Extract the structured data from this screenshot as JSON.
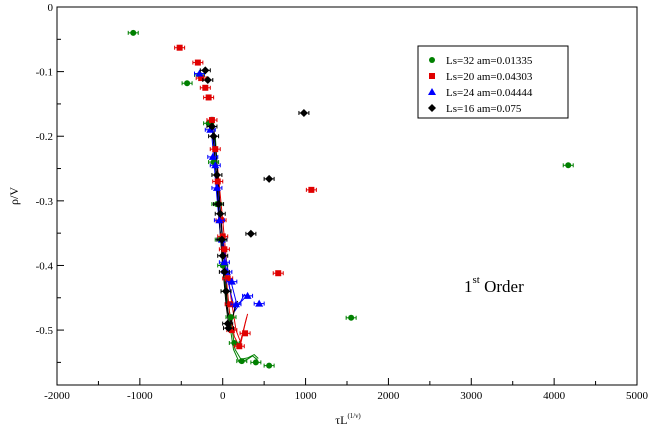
{
  "chart_data": {
    "type": "scatter",
    "xlabel": "τL",
    "xlabel_sup": "(1/ν)",
    "ylabel": "ρ/V",
    "xlim": [
      -2000,
      5000
    ],
    "ylim": [
      -0.585,
      0
    ],
    "xticks": [
      -2000,
      -1000,
      0,
      1000,
      2000,
      3000,
      4000,
      5000
    ],
    "yticks": [
      0,
      -0.1,
      -0.2,
      -0.3,
      -0.4,
      -0.5
    ],
    "grid": false,
    "legend_position": "top-right",
    "annotation": {
      "base": "1",
      "sup": "st",
      "rest": " Order"
    },
    "series": [
      {
        "name": "Ls=32  am=0.01335",
        "color": "#008000",
        "marker": "circle",
        "points": [
          [
            -1080,
            -0.04
          ],
          [
            -430,
            -0.118
          ],
          [
            -280,
            -0.105
          ],
          [
            -170,
            -0.18
          ],
          [
            -110,
            -0.24
          ],
          [
            -70,
            -0.305
          ],
          [
            -30,
            -0.36
          ],
          [
            0,
            -0.4
          ],
          [
            40,
            -0.44
          ],
          [
            100,
            -0.48
          ],
          [
            140,
            -0.52
          ],
          [
            230,
            -0.548
          ],
          [
            400,
            -0.55
          ],
          [
            560,
            -0.555
          ],
          [
            1550,
            -0.481
          ],
          [
            4170,
            -0.245
          ]
        ],
        "curves": [
          [
            [
              -110,
              -0.2
            ],
            [
              -60,
              -0.3
            ],
            [
              0,
              -0.4
            ],
            [
              60,
              -0.47
            ],
            [
              130,
              -0.53
            ],
            [
              200,
              -0.55
            ],
            [
              300,
              -0.545
            ],
            [
              360,
              -0.54
            ],
            [
              420,
              -0.546
            ]
          ],
          [
            [
              -90,
              -0.2
            ],
            [
              -40,
              -0.3
            ],
            [
              20,
              -0.4
            ],
            [
              80,
              -0.47
            ],
            [
              150,
              -0.53
            ],
            [
              220,
              -0.545
            ],
            [
              300,
              -0.543
            ],
            [
              380,
              -0.538
            ],
            [
              430,
              -0.544
            ]
          ]
        ]
      },
      {
        "name": "Ls=20  am=0.04303",
        "color": "#e00000",
        "marker": "square",
        "points": [
          [
            -520,
            -0.063
          ],
          [
            -300,
            -0.086
          ],
          [
            -260,
            -0.11
          ],
          [
            -210,
            -0.125
          ],
          [
            -170,
            -0.14
          ],
          [
            -130,
            -0.175
          ],
          [
            -90,
            -0.22
          ],
          [
            -60,
            -0.27
          ],
          [
            -20,
            -0.33
          ],
          [
            0,
            -0.355
          ],
          [
            20,
            -0.375
          ],
          [
            60,
            -0.42
          ],
          [
            90,
            -0.46
          ],
          [
            110,
            -0.5
          ],
          [
            200,
            -0.525
          ],
          [
            270,
            -0.505
          ],
          [
            670,
            -0.412
          ],
          [
            1070,
            -0.283
          ]
        ],
        "curves": [
          [
            [
              -80,
              -0.25
            ],
            [
              -20,
              -0.33
            ],
            [
              30,
              -0.4
            ],
            [
              80,
              -0.47
            ],
            [
              140,
              -0.51
            ],
            [
              200,
              -0.525
            ],
            [
              250,
              -0.5
            ],
            [
              290,
              -0.48
            ]
          ],
          [
            [
              -60,
              -0.25
            ],
            [
              0,
              -0.33
            ],
            [
              50,
              -0.4
            ],
            [
              100,
              -0.45
            ],
            [
              160,
              -0.5
            ],
            [
              220,
              -0.52
            ],
            [
              270,
              -0.49
            ],
            [
              300,
              -0.475
            ]
          ]
        ]
      },
      {
        "name": "Ls=24  am=0.04444",
        "color": "#0000ff",
        "marker": "triangle",
        "points": [
          [
            -280,
            -0.103
          ],
          [
            -150,
            -0.19
          ],
          [
            -120,
            -0.232
          ],
          [
            -90,
            -0.245
          ],
          [
            -70,
            -0.28
          ],
          [
            -40,
            -0.33
          ],
          [
            -10,
            -0.36
          ],
          [
            20,
            -0.395
          ],
          [
            50,
            -0.41
          ],
          [
            110,
            -0.425
          ],
          [
            160,
            -0.46
          ],
          [
            300,
            -0.447
          ],
          [
            440,
            -0.459
          ]
        ],
        "curves": [
          [
            [
              -130,
              -0.2
            ],
            [
              -80,
              -0.28
            ],
            [
              -30,
              -0.35
            ],
            [
              30,
              -0.4
            ],
            [
              90,
              -0.44
            ],
            [
              150,
              -0.47
            ],
            [
              200,
              -0.46
            ],
            [
              260,
              -0.445
            ],
            [
              320,
              -0.45
            ]
          ],
          [
            [
              -110,
              -0.2
            ],
            [
              -60,
              -0.28
            ],
            [
              -10,
              -0.35
            ],
            [
              50,
              -0.4
            ],
            [
              110,
              -0.43
            ],
            [
              170,
              -0.46
            ],
            [
              230,
              -0.455
            ],
            [
              290,
              -0.447
            ]
          ]
        ]
      },
      {
        "name": "Ls=16  am=0.075",
        "color": "#000000",
        "marker": "diamond",
        "points": [
          [
            -210,
            -0.098
          ],
          [
            -180,
            -0.113
          ],
          [
            -130,
            -0.185
          ],
          [
            -110,
            -0.2
          ],
          [
            -70,
            -0.26
          ],
          [
            -50,
            -0.305
          ],
          [
            -30,
            -0.32
          ],
          [
            -10,
            -0.36
          ],
          [
            0,
            -0.385
          ],
          [
            20,
            -0.41
          ],
          [
            40,
            -0.44
          ],
          [
            60,
            -0.49
          ],
          [
            70,
            -0.497
          ],
          [
            340,
            -0.351
          ],
          [
            560,
            -0.266
          ],
          [
            980,
            -0.164
          ]
        ],
        "curves": [
          [
            [
              -140,
              -0.17
            ],
            [
              -90,
              -0.24
            ],
            [
              -40,
              -0.33
            ],
            [
              0,
              -0.4
            ],
            [
              40,
              -0.46
            ],
            [
              80,
              -0.5
            ],
            [
              120,
              -0.48
            ],
            [
              160,
              -0.46
            ]
          ],
          [
            [
              -120,
              -0.17
            ],
            [
              -70,
              -0.24
            ],
            [
              -20,
              -0.33
            ],
            [
              20,
              -0.4
            ],
            [
              60,
              -0.47
            ],
            [
              100,
              -0.49
            ],
            [
              140,
              -0.47
            ],
            [
              180,
              -0.455
            ]
          ]
        ]
      }
    ]
  }
}
